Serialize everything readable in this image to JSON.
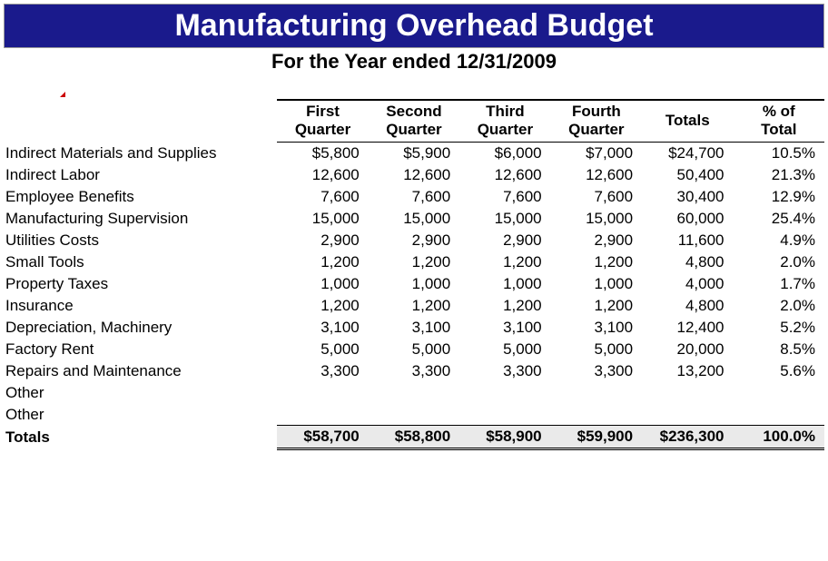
{
  "title": "Manufacturing Overhead Budget",
  "subtitle": "For the Year ended 12/31/2009",
  "headerTop": [
    "First",
    "Second",
    "Third",
    "Fourth",
    "",
    "% of"
  ],
  "headerBot": [
    "Quarter",
    "Quarter",
    "Quarter",
    "Quarter",
    "Totals",
    "Total"
  ],
  "rows": [
    {
      "label": "Indirect Materials and Supplies",
      "q1": "$5,800",
      "q2": "$5,900",
      "q3": "$6,000",
      "q4": "$7,000",
      "tot": "$24,700",
      "pct": "10.5%"
    },
    {
      "label": "Indirect Labor",
      "q1": "12,600",
      "q2": "12,600",
      "q3": "12,600",
      "q4": "12,600",
      "tot": "50,400",
      "pct": "21.3%"
    },
    {
      "label": "Employee Benefits",
      "q1": "7,600",
      "q2": "7,600",
      "q3": "7,600",
      "q4": "7,600",
      "tot": "30,400",
      "pct": "12.9%"
    },
    {
      "label": "Manufacturing Supervision",
      "q1": "15,000",
      "q2": "15,000",
      "q3": "15,000",
      "q4": "15,000",
      "tot": "60,000",
      "pct": "25.4%"
    },
    {
      "label": "Utilities Costs",
      "q1": "2,900",
      "q2": "2,900",
      "q3": "2,900",
      "q4": "2,900",
      "tot": "11,600",
      "pct": "4.9%"
    },
    {
      "label": "Small Tools",
      "q1": "1,200",
      "q2": "1,200",
      "q3": "1,200",
      "q4": "1,200",
      "tot": "4,800",
      "pct": "2.0%"
    },
    {
      "label": "Property Taxes",
      "q1": "1,000",
      "q2": "1,000",
      "q3": "1,000",
      "q4": "1,000",
      "tot": "4,000",
      "pct": "1.7%"
    },
    {
      "label": "Insurance",
      "q1": "1,200",
      "q2": "1,200",
      "q3": "1,200",
      "q4": "1,200",
      "tot": "4,800",
      "pct": "2.0%"
    },
    {
      "label": "Depreciation, Machinery",
      "q1": "3,100",
      "q2": "3,100",
      "q3": "3,100",
      "q4": "3,100",
      "tot": "12,400",
      "pct": "5.2%"
    },
    {
      "label": "Factory Rent",
      "q1": "5,000",
      "q2": "5,000",
      "q3": "5,000",
      "q4": "5,000",
      "tot": "20,000",
      "pct": "8.5%"
    },
    {
      "label": "Repairs and Maintenance",
      "q1": "3,300",
      "q2": "3,300",
      "q3": "3,300",
      "q4": "3,300",
      "tot": "13,200",
      "pct": "5.6%"
    },
    {
      "label": "Other",
      "q1": "",
      "q2": "",
      "q3": "",
      "q4": "",
      "tot": "",
      "pct": ""
    },
    {
      "label": "Other",
      "q1": "",
      "q2": "",
      "q3": "",
      "q4": "",
      "tot": "",
      "pct": ""
    }
  ],
  "totals": {
    "label": "Totals",
    "q1": "$58,700",
    "q2": "$58,800",
    "q3": "$58,900",
    "q4": "$59,900",
    "tot": "$236,300",
    "pct": "100.0%"
  },
  "colors": {
    "titleBg": "#1a1a8c",
    "totalsBg": "#eaeaea",
    "marker": "#c00"
  }
}
